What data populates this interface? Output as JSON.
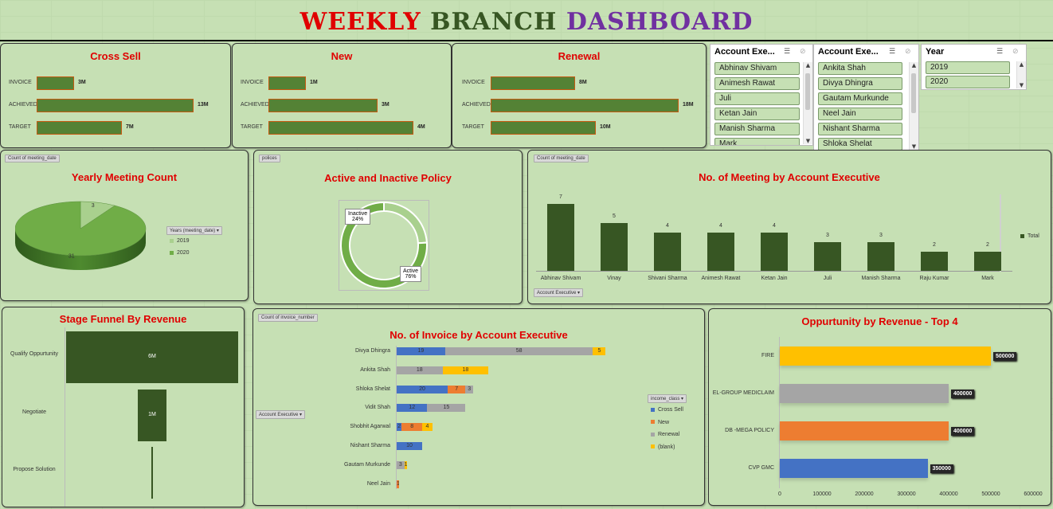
{
  "title": {
    "word1": "WEEKLY",
    "word2": "BRANCH",
    "word3": "DASHBOARD"
  },
  "kpi_cards": [
    {
      "title": "Cross Sell",
      "rows": [
        {
          "label": "INVOICE",
          "value": 3,
          "text": "3M"
        },
        {
          "label": "ACHIEVED",
          "value": 13,
          "text": "13M"
        },
        {
          "label": "TARGET",
          "value": 7,
          "text": "7M"
        }
      ]
    },
    {
      "title": "New",
      "rows": [
        {
          "label": "INVOICE",
          "value": 1,
          "text": "1M"
        },
        {
          "label": "ACHIEVED",
          "value": 3,
          "text": "3M"
        },
        {
          "label": "TARGET",
          "value": 4,
          "text": "4M"
        }
      ]
    },
    {
      "title": "Renewal",
      "rows": [
        {
          "label": "INVOICE",
          "value": 8,
          "text": "8M"
        },
        {
          "label": "ACHIEVED",
          "value": 18,
          "text": "18M"
        },
        {
          "label": "TARGET",
          "value": 10,
          "text": "10M"
        }
      ]
    }
  ],
  "slicers": [
    {
      "header": "Account Exe...",
      "items": [
        "Abhinav Shivam",
        "Animesh Rawat",
        "Juli",
        "Ketan Jain",
        "Manish Sharma",
        "Mark"
      ]
    },
    {
      "header": "Account Exe...",
      "items": [
        "Ankita Shah",
        "Divya Dhingra",
        "Gautam Murkunde",
        "Neel Jain",
        "Nishant Sharma",
        "Shloka Shelat"
      ]
    },
    {
      "header": "Year",
      "items": [
        "2019",
        "2020"
      ]
    }
  ],
  "yearly_meeting": {
    "field_button": "Count of meeting_date",
    "title": "Yearly Meeting Count",
    "legend_button": "Years (meeting_date)",
    "legend": [
      "2019",
      "2020"
    ],
    "colors": [
      "#a9d08e",
      "#70ad47"
    ]
  },
  "policy": {
    "field_button": "polices",
    "title": "Active and Inactive Policy",
    "inactive_label": "Inactive",
    "inactive_pct": "24%",
    "active_label": "Active",
    "active_pct": "76%"
  },
  "meetings_exec": {
    "field_button": "Count of meeting_date",
    "title": "No. of Meeting by Account Executive",
    "legend": "Total",
    "axis_button": "Account Executive"
  },
  "funnel": {
    "title": "Stage Funnel By Revenue",
    "stages": [
      {
        "label": "Qualify Oppurtunity",
        "value": 6,
        "text": "6M"
      },
      {
        "label": "Negotiate",
        "value": 1,
        "text": "1M"
      },
      {
        "label": "Propose Solution",
        "value": 0.05,
        "text": ""
      }
    ]
  },
  "invoices": {
    "field_button": "Count of invoice_number",
    "title": "No. of Invoice by Account Executive",
    "axis_button": "Account Executive",
    "legend_button": "income_class"
  },
  "opportunity": {
    "title": "Oppurtunity by Revenue - Top 4"
  },
  "chart_data": [
    {
      "type": "pie",
      "title": "Yearly Meeting Count",
      "labels": [
        "2019",
        "2020"
      ],
      "values": [
        3,
        31
      ]
    },
    {
      "type": "pie",
      "title": "Active and Inactive Policy",
      "labels": [
        "Inactive",
        "Active"
      ],
      "values": [
        24,
        76
      ]
    },
    {
      "type": "bar",
      "title": "No. of Meeting by Account Executive",
      "categories": [
        "Abhinav Shivam",
        "Vinay",
        "Shivani Sharma",
        "Animesh Rawat",
        "Ketan Jain",
        "Juli",
        "Manish Sharma",
        "Raju Kumar",
        "Mark"
      ],
      "series": [
        {
          "name": "Total",
          "values": [
            7,
            5,
            4,
            4,
            4,
            3,
            3,
            2,
            2
          ]
        }
      ],
      "ylim": [
        0,
        8
      ]
    },
    {
      "type": "bar",
      "title": "No. of Invoice by Account Executive",
      "categories": [
        "Divya Dhingra",
        "Ankita Shah",
        "Shloka Shelat",
        "Vidit Shah",
        "Shobhit Agarwal",
        "Nishant Sharma",
        "Gautam Murkunde",
        "Neel Jain"
      ],
      "series": [
        {
          "name": "Cross Sell",
          "values": [
            19,
            0,
            20,
            12,
            2,
            10,
            0,
            0
          ]
        },
        {
          "name": "New",
          "values": [
            0,
            0,
            7,
            0,
            8,
            0,
            0,
            1
          ]
        },
        {
          "name": "Renewal",
          "values": [
            58,
            18,
            3,
            15,
            0,
            0,
            3,
            0
          ]
        },
        {
          "name": "(blank)",
          "values": [
            5,
            18,
            0,
            0,
            4,
            0,
            1,
            0
          ]
        }
      ]
    },
    {
      "type": "bar",
      "title": "Oppurtunity by Revenue - Top 4",
      "categories": [
        "FIRE",
        "EL-GROUP MEDICLAIM",
        "DB -MEGA POLICY",
        "CVP GMC"
      ],
      "values": [
        500000,
        400000,
        400000,
        350000
      ],
      "xlim": [
        0,
        600000
      ],
      "xticks": [
        "0",
        "100000",
        "200000",
        "300000",
        "400000",
        "500000",
        "600000"
      ]
    }
  ],
  "colors": {
    "dark_green": "#375623",
    "mid_green": "#548235",
    "cross_sell": "#4472c4",
    "new": "#ed7d31",
    "renewal": "#a5a5a5",
    "blank": "#ffc000",
    "title_red": "#e00000"
  }
}
